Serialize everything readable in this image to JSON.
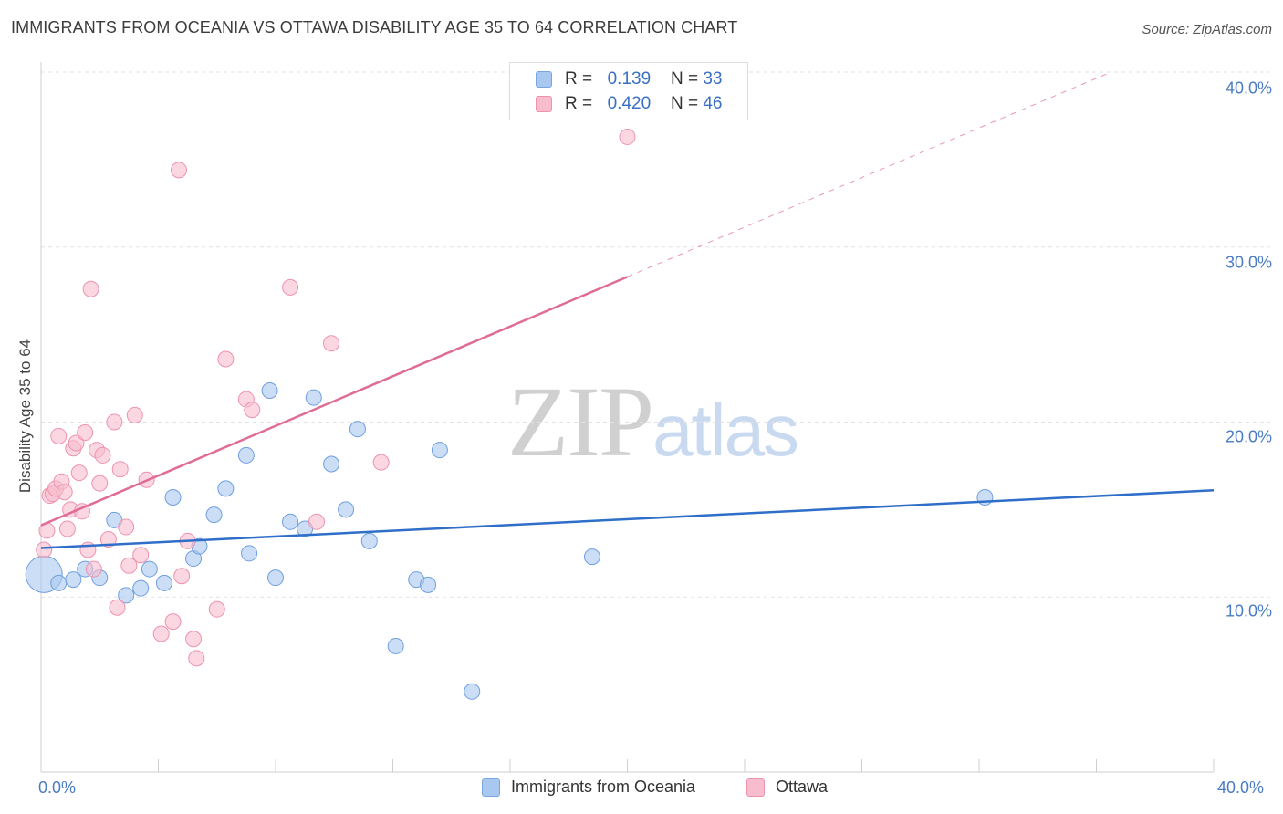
{
  "header": {
    "title": "IMMIGRANTS FROM OCEANIA VS OTTAWA DISABILITY AGE 35 TO 64 CORRELATION CHART",
    "source": "Source: ZipAtlas.com"
  },
  "watermark": {
    "zip": "ZIP",
    "atlas": "atlas"
  },
  "legend": {
    "rows": [
      {
        "r_label": "R =",
        "r_value": "0.139",
        "n_label": "N =",
        "n_value": "33",
        "color": "#a9c8f0",
        "border": "#7aa6e0"
      },
      {
        "r_label": "R =",
        "r_value": "0.420",
        "n_label": "N =",
        "n_value": "46",
        "color": "#f7bccd",
        "border": "#ee93ae"
      }
    ]
  },
  "colors": {
    "blue_fill": "#a9c8f0",
    "blue_stroke": "#6f9fe0",
    "blue_line": "#2f6fc9",
    "pink_fill": "#f7bccd",
    "pink_stroke": "#ee93ae",
    "pink_line": "#e06b95",
    "grid": "#e2e2e2",
    "tick_text": "#4a7cc4"
  },
  "chart_data": {
    "type": "scatter",
    "title": "IMMIGRANTS FROM OCEANIA VS OTTAWA DISABILITY AGE 35 TO 64 CORRELATION CHART",
    "xlabel": "",
    "ylabel": "Disability Age 35 to 64",
    "xlim": [
      0,
      40
    ],
    "ylim": [
      0,
      40
    ],
    "x_tick_labels": [
      "0.0%",
      "40.0%"
    ],
    "y_tick_labels": [
      {
        "value": 10,
        "label": "10.0%"
      },
      {
        "value": 20,
        "label": "20.0%"
      },
      {
        "value": 30,
        "label": "30.0%"
      },
      {
        "value": 40,
        "label": "40.0%"
      }
    ],
    "grid": true,
    "legend_position": "top-center and bottom",
    "series": [
      {
        "name": "Immigrants from Oceania",
        "color": "#a9c8f0",
        "trend": {
          "x": [
            0,
            40
          ],
          "y": [
            12.8,
            16.1
          ]
        },
        "points": [
          {
            "x": 0.1,
            "y": 11.3,
            "big": true
          },
          {
            "x": 0.6,
            "y": 10.8
          },
          {
            "x": 1.1,
            "y": 11.0
          },
          {
            "x": 1.5,
            "y": 11.6
          },
          {
            "x": 2.0,
            "y": 11.1
          },
          {
            "x": 2.5,
            "y": 14.4
          },
          {
            "x": 2.9,
            "y": 10.1
          },
          {
            "x": 3.4,
            "y": 10.5
          },
          {
            "x": 3.7,
            "y": 11.6
          },
          {
            "x": 4.2,
            "y": 10.8
          },
          {
            "x": 4.5,
            "y": 15.7
          },
          {
            "x": 5.2,
            "y": 12.2
          },
          {
            "x": 5.4,
            "y": 12.9
          },
          {
            "x": 5.9,
            "y": 14.7
          },
          {
            "x": 6.3,
            "y": 16.2
          },
          {
            "x": 7.0,
            "y": 18.1
          },
          {
            "x": 7.1,
            "y": 12.5
          },
          {
            "x": 7.8,
            "y": 21.8
          },
          {
            "x": 8.0,
            "y": 11.1
          },
          {
            "x": 8.5,
            "y": 14.3
          },
          {
            "x": 9.0,
            "y": 13.9
          },
          {
            "x": 9.3,
            "y": 21.4
          },
          {
            "x": 9.9,
            "y": 17.6
          },
          {
            "x": 10.4,
            "y": 15.0
          },
          {
            "x": 10.8,
            "y": 19.6
          },
          {
            "x": 11.2,
            "y": 13.2
          },
          {
            "x": 12.1,
            "y": 7.2
          },
          {
            "x": 12.8,
            "y": 11.0
          },
          {
            "x": 13.2,
            "y": 10.7
          },
          {
            "x": 13.6,
            "y": 18.4
          },
          {
            "x": 14.7,
            "y": 4.6
          },
          {
            "x": 18.8,
            "y": 12.3
          },
          {
            "x": 32.2,
            "y": 15.7
          }
        ]
      },
      {
        "name": "Ottawa",
        "color": "#f7bccd",
        "trend": {
          "x": [
            0,
            20
          ],
          "y": [
            14.1,
            28.3
          ],
          "dashed_x": [
            20,
            36.5
          ],
          "dashed_y": [
            28.3,
            40.0
          ]
        },
        "points": [
          {
            "x": 0.1,
            "y": 12.7
          },
          {
            "x": 0.2,
            "y": 13.8
          },
          {
            "x": 0.3,
            "y": 15.8
          },
          {
            "x": 0.4,
            "y": 15.9
          },
          {
            "x": 0.5,
            "y": 16.2
          },
          {
            "x": 0.6,
            "y": 19.2
          },
          {
            "x": 0.7,
            "y": 16.6
          },
          {
            "x": 0.8,
            "y": 16.0
          },
          {
            "x": 0.9,
            "y": 13.9
          },
          {
            "x": 1.0,
            "y": 15.0
          },
          {
            "x": 1.1,
            "y": 18.5
          },
          {
            "x": 1.2,
            "y": 18.8
          },
          {
            "x": 1.3,
            "y": 17.1
          },
          {
            "x": 1.4,
            "y": 14.9
          },
          {
            "x": 1.5,
            "y": 19.4
          },
          {
            "x": 1.6,
            "y": 12.7
          },
          {
            "x": 1.7,
            "y": 27.6
          },
          {
            "x": 1.8,
            "y": 11.6
          },
          {
            "x": 1.9,
            "y": 18.4
          },
          {
            "x": 2.0,
            "y": 16.5
          },
          {
            "x": 2.1,
            "y": 18.1
          },
          {
            "x": 2.3,
            "y": 13.3
          },
          {
            "x": 2.5,
            "y": 20.0
          },
          {
            "x": 2.6,
            "y": 9.4
          },
          {
            "x": 2.7,
            "y": 17.3
          },
          {
            "x": 2.9,
            "y": 14.0
          },
          {
            "x": 3.0,
            "y": 11.8
          },
          {
            "x": 3.2,
            "y": 20.4
          },
          {
            "x": 3.4,
            "y": 12.4
          },
          {
            "x": 3.6,
            "y": 16.7
          },
          {
            "x": 4.1,
            "y": 7.9
          },
          {
            "x": 4.5,
            "y": 8.6
          },
          {
            "x": 4.7,
            "y": 34.4
          },
          {
            "x": 4.8,
            "y": 11.2
          },
          {
            "x": 5.0,
            "y": 13.2
          },
          {
            "x": 5.2,
            "y": 7.6
          },
          {
            "x": 5.3,
            "y": 6.5
          },
          {
            "x": 6.0,
            "y": 9.3
          },
          {
            "x": 6.3,
            "y": 23.6
          },
          {
            "x": 7.0,
            "y": 21.3
          },
          {
            "x": 7.2,
            "y": 20.7
          },
          {
            "x": 8.5,
            "y": 27.7
          },
          {
            "x": 9.4,
            "y": 14.3
          },
          {
            "x": 9.9,
            "y": 24.5
          },
          {
            "x": 11.6,
            "y": 17.7
          },
          {
            "x": 20.0,
            "y": 36.3
          }
        ]
      }
    ]
  }
}
